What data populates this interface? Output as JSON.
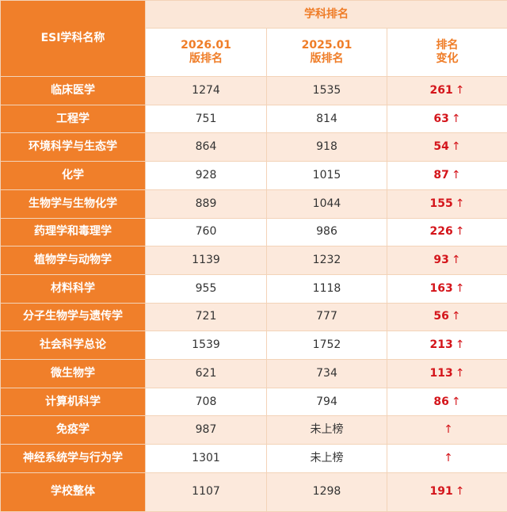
{
  "header": {
    "name_col": "ESI学科名称",
    "group": "学科排名",
    "col_2026": [
      "2026.01",
      "版排名"
    ],
    "col_2025": [
      "2025.01",
      "版排名"
    ],
    "col_change": [
      "排名",
      "变化"
    ]
  },
  "arrow": "↑",
  "rows": [
    {
      "name": "临床医学",
      "r2026": "1274",
      "r2025": "1535",
      "change": "261"
    },
    {
      "name": "工程学",
      "r2026": "751",
      "r2025": "814",
      "change": "63"
    },
    {
      "name": "环境科学与生态学",
      "r2026": "864",
      "r2025": "918",
      "change": "54"
    },
    {
      "name": "化学",
      "r2026": "928",
      "r2025": "1015",
      "change": "87"
    },
    {
      "name": "生物学与生物化学",
      "r2026": "889",
      "r2025": "1044",
      "change": "155"
    },
    {
      "name": "药理学和毒理学",
      "r2026": "760",
      "r2025": "986",
      "change": "226"
    },
    {
      "name": "植物学与动物学",
      "r2026": "1139",
      "r2025": "1232",
      "change": "93"
    },
    {
      "name": "材料科学",
      "r2026": "955",
      "r2025": "1118",
      "change": "163"
    },
    {
      "name": "分子生物学与遗传学",
      "r2026": "721",
      "r2025": "777",
      "change": "56"
    },
    {
      "name": "社会科学总论",
      "r2026": "1539",
      "r2025": "1752",
      "change": "213"
    },
    {
      "name": "微生物学",
      "r2026": "621",
      "r2025": "734",
      "change": "113"
    },
    {
      "name": "计算机科学",
      "r2026": "708",
      "r2025": "794",
      "change": "86"
    },
    {
      "name": "免疫学",
      "r2026": "987",
      "r2025": "未上榜",
      "change": ""
    },
    {
      "name": "神经系统学与行为学",
      "r2026": "1301",
      "r2025": "未上榜",
      "change": ""
    },
    {
      "name": "学校整体",
      "r2026": "1107",
      "r2025": "1298",
      "change": "191"
    }
  ],
  "colors": {
    "orange": "#f07f2a",
    "header_text": "#ef7d28",
    "shade": "#fce9dc",
    "change_red": "#d4151b"
  }
}
